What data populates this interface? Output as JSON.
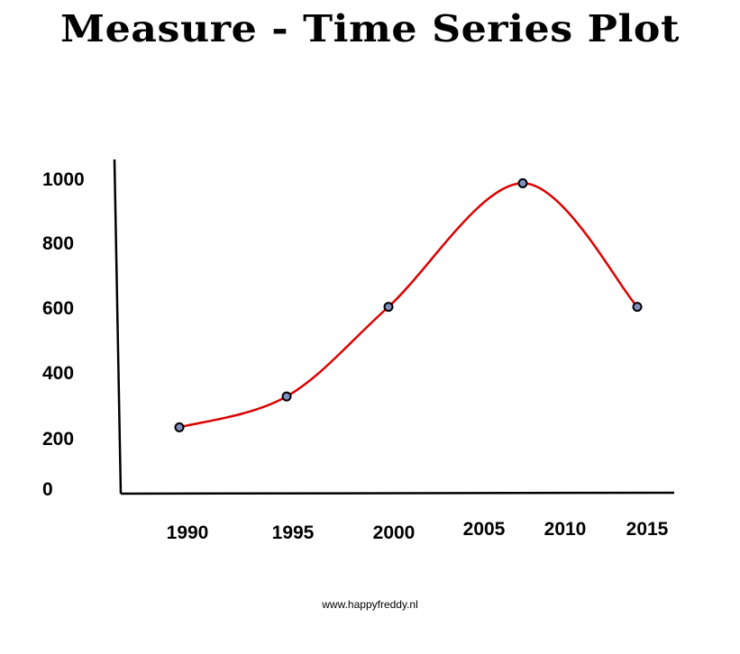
{
  "chart_data": {
    "type": "line",
    "title": "Measure - Time Series Plot",
    "xlabel": "",
    "ylabel": "",
    "x_ticks": [
      "1990",
      "1995",
      "2000",
      "2005",
      "2010",
      "2015"
    ],
    "y_ticks": [
      "0",
      "200",
      "400",
      "600",
      "800",
      "1000"
    ],
    "points": [
      {
        "x": 1990,
        "y": 200
      },
      {
        "x": 1995,
        "y": 300
      },
      {
        "x": 2000,
        "y": 590
      },
      {
        "x": 2007,
        "y": 990
      },
      {
        "x": 2015,
        "y": 590
      }
    ],
    "line_color": "#dd0000",
    "marker_color": "#7f8fbf",
    "grid": false,
    "smooth": true
  },
  "footer": "www.happyfreddy.nl"
}
